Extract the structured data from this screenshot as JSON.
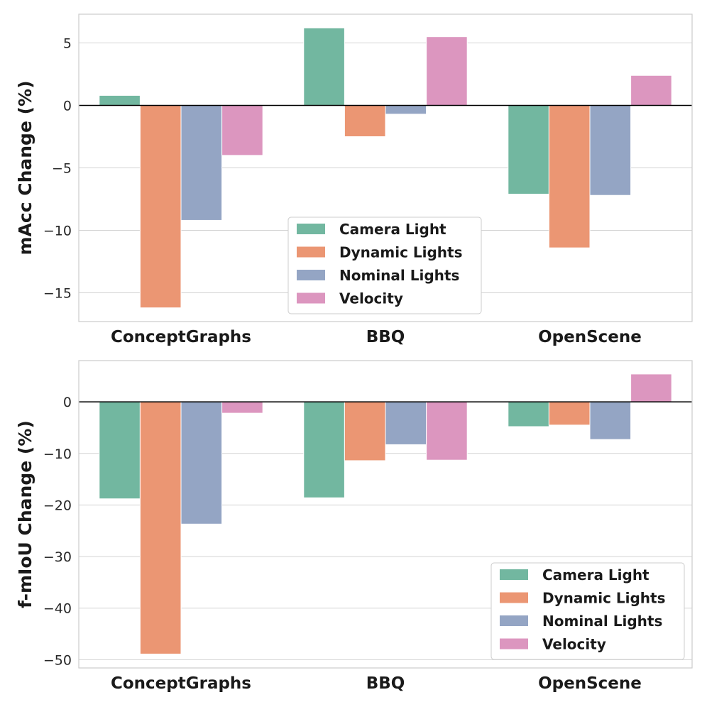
{
  "chart_data": [
    {
      "type": "bar",
      "ylabel": "mAcc Change (%)",
      "categories": [
        "ConceptGraphs",
        "BBQ",
        "OpenScene"
      ],
      "series": [
        {
          "name": "Camera Light",
          "values": [
            0.8,
            6.2,
            -7.1
          ]
        },
        {
          "name": "Dynamic Lights",
          "values": [
            -16.2,
            -2.5,
            -11.4
          ]
        },
        {
          "name": "Nominal Lights",
          "values": [
            -9.2,
            -0.7,
            -7.2
          ]
        },
        {
          "name": "Velocity",
          "values": [
            -4.0,
            5.5,
            2.4
          ]
        }
      ],
      "ylim": [
        -17.3,
        7.3
      ],
      "yticks": [
        5,
        0,
        -5,
        -10,
        -15
      ],
      "ytick_labels": [
        "5",
        "0",
        "−5",
        "−10",
        "−15"
      ],
      "grid": true,
      "legend_position": "lower-center"
    },
    {
      "type": "bar",
      "ylabel": "f-mIoU Change (%)",
      "categories": [
        "ConceptGraphs",
        "BBQ",
        "OpenScene"
      ],
      "series": [
        {
          "name": "Camera Light",
          "values": [
            -18.8,
            -18.6,
            -4.8
          ]
        },
        {
          "name": "Dynamic Lights",
          "values": [
            -48.9,
            -11.4,
            -4.5
          ]
        },
        {
          "name": "Nominal Lights",
          "values": [
            -23.7,
            -8.3,
            -7.3
          ]
        },
        {
          "name": "Velocity",
          "values": [
            -2.2,
            -11.3,
            5.4
          ]
        }
      ],
      "ylim": [
        -51.6,
        8.0
      ],
      "yticks": [
        0,
        -10,
        -20,
        -30,
        -40,
        -50
      ],
      "ytick_labels": [
        "0",
        "−10",
        "−20",
        "−30",
        "−40",
        "−50"
      ],
      "grid": true,
      "legend_position": "lower-right"
    }
  ],
  "colors": {
    "Camera Light": "#72b7a0",
    "Dynamic Lights": "#eb9673",
    "Nominal Lights": "#94a5c4",
    "Velocity": "#dc96bf"
  }
}
